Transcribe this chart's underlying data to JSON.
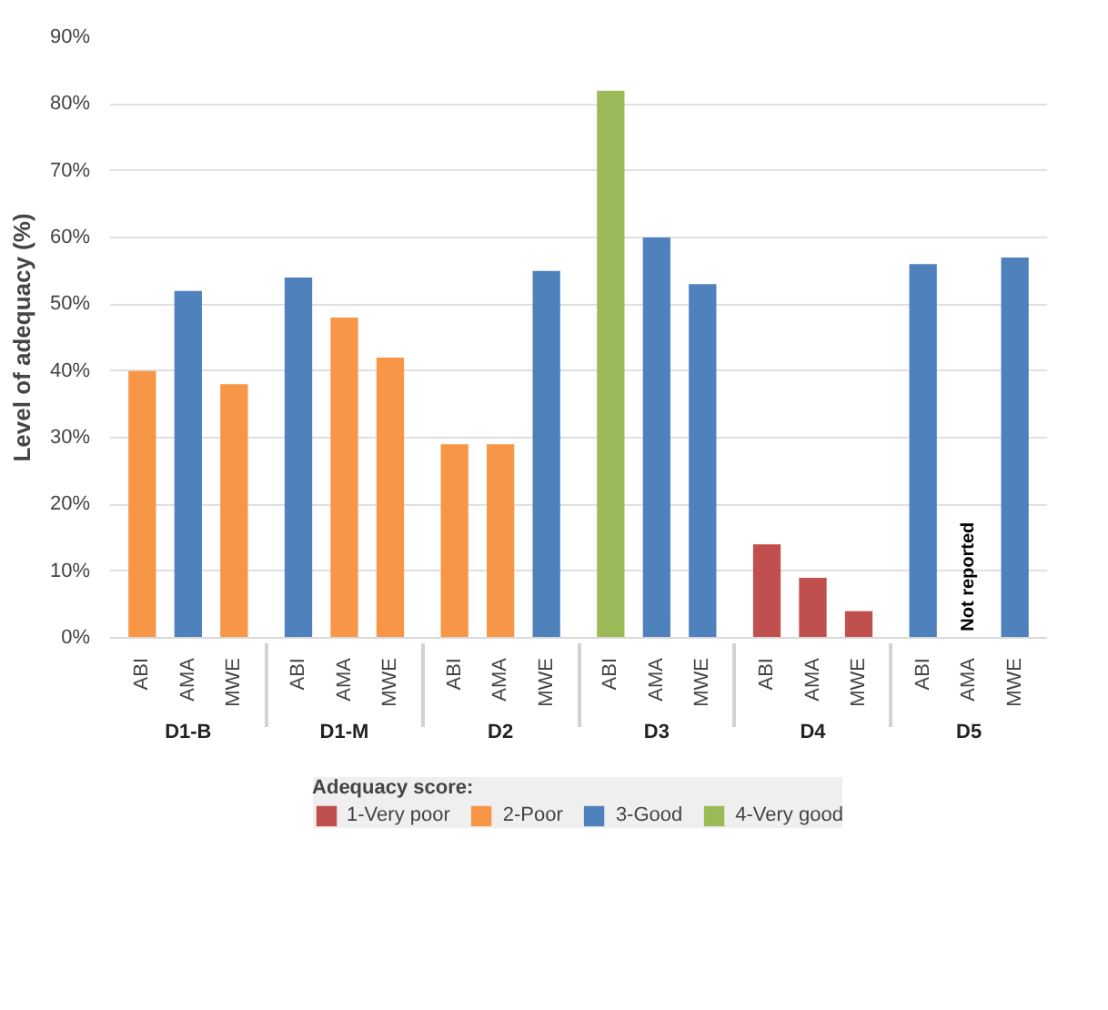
{
  "chart_data": {
    "type": "bar",
    "ylabel": "Level of adequacy (%)",
    "legend_title": "Adequacy score:",
    "categories": [
      "ABI",
      "AMA",
      "MWE",
      "ABI",
      "AMA",
      "MWE",
      "ABI",
      "AMA",
      "MWE",
      "ABI",
      "AMA",
      "MWE",
      "ABI",
      "AMA",
      "MWE",
      "ABI",
      "AMA",
      "MWE"
    ],
    "annotations": [
      "D1-B",
      "D1-M",
      "D2",
      "D3",
      "D4",
      "D5"
    ],
    "series": [
      {
        "name": "1-Very poor",
        "color": "#c0504d",
        "values": [
          null,
          null,
          null,
          null,
          null,
          null,
          null,
          null,
          null,
          null,
          null,
          null,
          14,
          9,
          4,
          null,
          null,
          null
        ]
      },
      {
        "name": "2-Poor",
        "color": "#f79646",
        "values": [
          40,
          null,
          38,
          null,
          48,
          42,
          29,
          29,
          null,
          null,
          null,
          null,
          null,
          null,
          null,
          null,
          null,
          null
        ]
      },
      {
        "name": "3-Good",
        "color": "#4f81bd",
        "values": [
          null,
          52,
          null,
          54,
          null,
          null,
          null,
          null,
          55,
          null,
          60,
          53,
          null,
          null,
          null,
          56,
          null,
          57
        ],
        "value_labels": [
          null,
          null,
          null,
          null,
          null,
          null,
          null,
          null,
          null,
          null,
          null,
          null,
          null,
          null,
          null,
          null,
          "Not reported",
          null
        ]
      },
      {
        "name": "4-Very good",
        "color": "#9bbb59",
        "values": [
          null,
          null,
          null,
          null,
          null,
          null,
          null,
          null,
          null,
          82,
          null,
          null,
          null,
          null,
          null,
          null,
          null,
          null
        ]
      }
    ],
    "ylim": [
      0,
      90
    ],
    "yticks": [
      {
        "value": 0,
        "label": "0%"
      },
      {
        "value": 10,
        "label": "10%"
      },
      {
        "value": 20,
        "label": "20%"
      },
      {
        "value": 30,
        "label": "30%"
      },
      {
        "value": 40,
        "label": "40%"
      },
      {
        "value": 50,
        "label": "50%"
      },
      {
        "value": 60,
        "label": "60%"
      },
      {
        "value": 70,
        "label": "70%"
      },
      {
        "value": 80,
        "label": "80%"
      },
      {
        "value": 90,
        "label": "90%"
      }
    ],
    "grid": "y",
    "legend": "bottom"
  }
}
